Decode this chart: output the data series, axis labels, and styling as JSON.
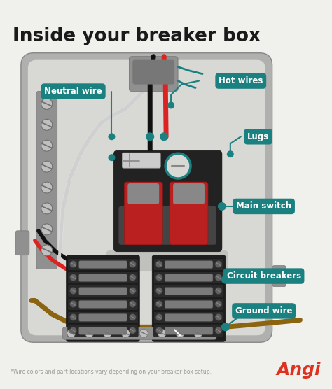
{
  "title": "Inside your breaker box",
  "footnote": "*Wire colors and part locations vary depending on your breaker box setup.",
  "brand": "Angi",
  "bg_color": "#f0f0ec",
  "teal": "#1a8080",
  "title_color": "#1a1a1a",
  "footnote_color": "#999999",
  "brand_color": "#e03020",
  "box_outer_color": "#b0b0ae",
  "box_mid_color": "#c8c8c5",
  "box_inner_color": "#d8d8d4",
  "main_blk_color": "#222222",
  "breaker_color": "#282828",
  "breaker_toggle": "#888888",
  "red_switch": "#cc2222",
  "white_wire": "#e0e0e0",
  "black_wire": "#111111",
  "red_wire": "#dd2222",
  "brown_wire": "#8B6410",
  "screw_color": "#aaaaaa",
  "strip_color": "#888888",
  "conduit_color": "#909090"
}
